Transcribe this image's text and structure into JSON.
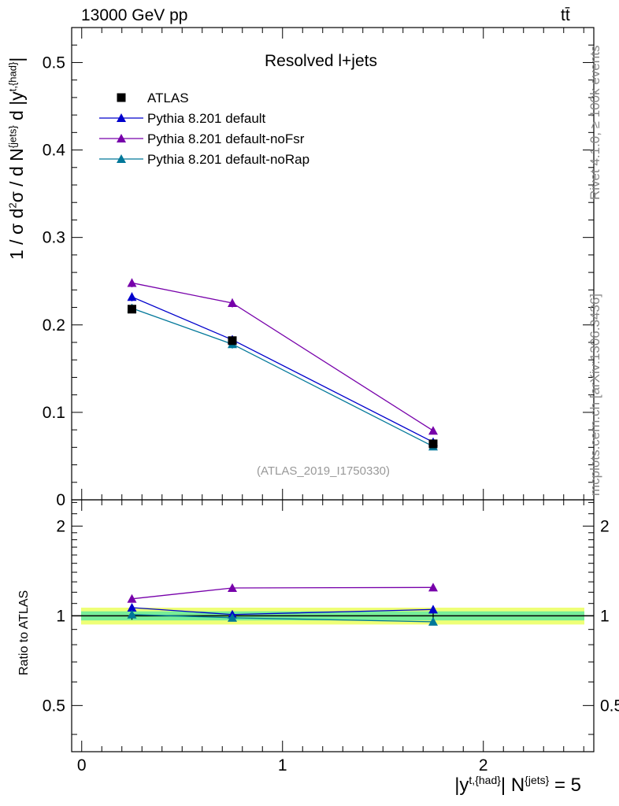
{
  "header": {
    "energy_label": "13000 GeV pp",
    "process_label": "tt̄",
    "rivet_label": "Rivet 4.1.0, ≥ 100k events",
    "mcplots_label": "mcplots.cern.ch [arXiv:1306.3436]",
    "reference_label": "(ATLAS_2019_I1750330)"
  },
  "axes": {
    "main_ylabel_parts": [
      "1 / σ d",
      "2",
      "σ / d N",
      "{jets}",
      " d |y",
      "t,{had}",
      "|"
    ],
    "ratio_ylabel": "Ratio to ATLAS",
    "xlabel_parts": [
      "|y",
      "t,{had}",
      "| N",
      "{jets}",
      " = 5"
    ]
  },
  "colors": {
    "atlas": "#000000",
    "default": "#0000cc",
    "noFsr": "#7700aa",
    "noRap": "#007799",
    "band_inner": "#77ee99",
    "band_outer": "#eeff77"
  },
  "chart_data": [
    {
      "type": "scatter",
      "panel": "main",
      "title": "Resolved l+jets",
      "xlim": [
        -0.05,
        2.55
      ],
      "ylim": [
        0,
        0.54
      ],
      "yticks": [
        0,
        0.1,
        0.2,
        0.3,
        0.4,
        0.5
      ],
      "ytick_labels": [
        "0",
        "0.1",
        "0.2",
        "0.3",
        "0.4",
        "0.5"
      ],
      "x": [
        0.25,
        0.75,
        1.75
      ],
      "series": [
        {
          "name": "ATLAS",
          "key": "atlas",
          "marker": "square",
          "values": [
            0.218,
            0.182,
            0.064
          ],
          "errors": [
            0.004,
            0.004,
            0.003
          ]
        },
        {
          "name": "Pythia 8.201 default",
          "key": "default",
          "marker": "triangle",
          "values": [
            0.232,
            0.183,
            0.066
          ],
          "errors": [
            0.005,
            0.005,
            0.003
          ]
        },
        {
          "name": "Pythia 8.201 default-noFsr",
          "key": "noFsr",
          "marker": "triangle",
          "values": [
            0.248,
            0.225,
            0.079
          ],
          "errors": [
            0.005,
            0.005,
            0.003
          ]
        },
        {
          "name": "Pythia 8.201 default-noRap",
          "key": "noRap",
          "marker": "triangle",
          "values": [
            0.219,
            0.178,
            0.061
          ],
          "errors": [
            0.005,
            0.005,
            0.003
          ]
        }
      ],
      "legend_position": "top-left"
    },
    {
      "type": "scatter",
      "panel": "ratio",
      "ylabel": "Ratio to ATLAS",
      "xlim": [
        -0.05,
        2.55
      ],
      "ylim": [
        0.35,
        2.45
      ],
      "yscale": "log",
      "yticks": [
        0.5,
        1,
        2
      ],
      "ytick_labels": [
        "0.5",
        "1",
        "2"
      ],
      "xticks": [
        0,
        1,
        2
      ],
      "xtick_labels": [
        "0",
        "1",
        "2"
      ],
      "x": [
        0.25,
        0.75,
        1.75
      ],
      "band": {
        "inner": 0.035,
        "outer": 0.065
      },
      "series": [
        {
          "name": "Pythia 8.201 default",
          "key": "default",
          "values": [
            1.065,
            1.01,
            1.05
          ],
          "errors": [
            0.02,
            0.025,
            0.03
          ]
        },
        {
          "name": "Pythia 8.201 default-noFsr",
          "key": "noFsr",
          "values": [
            1.14,
            1.24,
            1.245
          ],
          "errors": [
            0.02,
            0.025,
            0.025
          ]
        },
        {
          "name": "Pythia 8.201 default-noRap",
          "key": "noRap",
          "values": [
            1.01,
            0.985,
            0.955
          ],
          "errors": [
            0.02,
            0.02,
            0.025
          ]
        }
      ]
    }
  ]
}
